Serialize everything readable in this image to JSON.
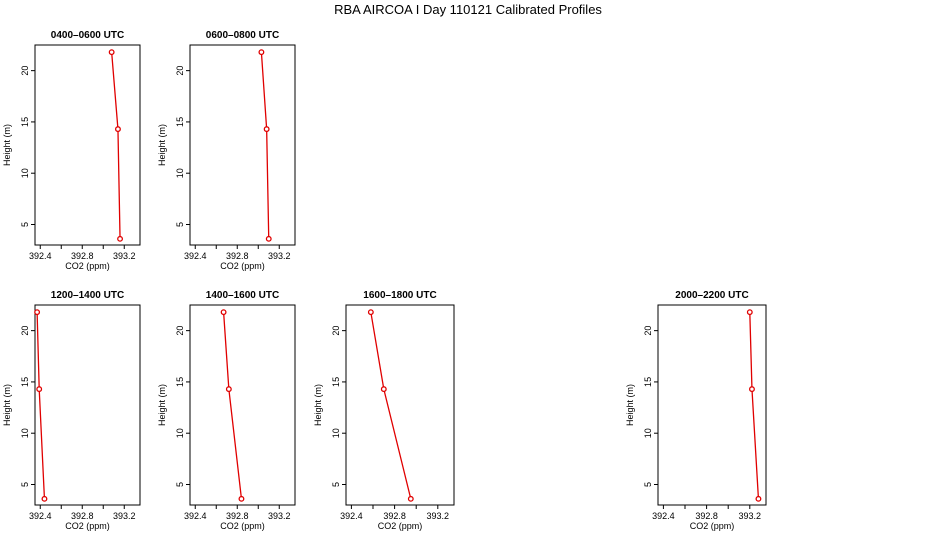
{
  "title": "RBA AIRCOA I  Day 110121  Calibrated Profiles",
  "colors": {
    "series": "#e00000",
    "axes": "#000000",
    "background": "#ffffff"
  },
  "chart_data": [
    {
      "type": "line",
      "title": "0400–0600 UTC",
      "xlabel": "CO2 (ppm)",
      "ylabel": "Height (m)",
      "xlim": [
        392.35,
        393.35
      ],
      "ylim": [
        3,
        22.5
      ],
      "xticks": [
        "392.4",
        "392.8",
        "393.2"
      ],
      "yticks": [
        "5",
        "10",
        "15",
        "20"
      ],
      "points": [
        [
          393.08,
          21.8
        ],
        [
          393.14,
          14.3
        ],
        [
          393.16,
          3.6
        ]
      ]
    },
    {
      "type": "line",
      "title": "0600–0800 UTC",
      "xlabel": "CO2 (ppm)",
      "ylabel": "Height (m)",
      "xlim": [
        392.35,
        393.35
      ],
      "ylim": [
        3,
        22.5
      ],
      "xticks": [
        "392.4",
        "392.8",
        "393.2"
      ],
      "yticks": [
        "5",
        "10",
        "15",
        "20"
      ],
      "points": [
        [
          393.03,
          21.8
        ],
        [
          393.08,
          14.3
        ],
        [
          393.1,
          3.6
        ]
      ]
    },
    {
      "type": "line",
      "title": "1200–1400 UTC",
      "xlabel": "CO2 (ppm)",
      "ylabel": "Height (m)",
      "xlim": [
        392.35,
        393.35
      ],
      "ylim": [
        3,
        22.5
      ],
      "xticks": [
        "392.4",
        "392.8",
        "393.2"
      ],
      "yticks": [
        "5",
        "10",
        "15",
        "20"
      ],
      "points": [
        [
          392.37,
          21.8
        ],
        [
          392.39,
          14.3
        ],
        [
          392.44,
          3.6
        ]
      ]
    },
    {
      "type": "line",
      "title": "1400–1600 UTC",
      "xlabel": "CO2 (ppm)",
      "ylabel": "Height (m)",
      "xlim": [
        392.35,
        393.35
      ],
      "ylim": [
        3,
        22.5
      ],
      "xticks": [
        "392.4",
        "392.8",
        "393.2"
      ],
      "yticks": [
        "5",
        "10",
        "15",
        "20"
      ],
      "points": [
        [
          392.67,
          21.8
        ],
        [
          392.72,
          14.3
        ],
        [
          392.84,
          3.6
        ]
      ]
    },
    {
      "type": "line",
      "title": "1600–1800 UTC",
      "xlabel": "CO2 (ppm)",
      "ylabel": "Height (m)",
      "xlim": [
        392.35,
        393.35
      ],
      "ylim": [
        3,
        22.5
      ],
      "xticks": [
        "392.4",
        "392.8",
        "393.2"
      ],
      "yticks": [
        "5",
        "10",
        "15",
        "20"
      ],
      "points": [
        [
          392.58,
          21.8
        ],
        [
          392.7,
          14.3
        ],
        [
          392.95,
          3.6
        ]
      ]
    },
    {
      "type": "line",
      "title": "2000–2200 UTC",
      "xlabel": "CO2 (ppm)",
      "ylabel": "Height (m)",
      "xlim": [
        392.35,
        393.35
      ],
      "ylim": [
        3,
        22.5
      ],
      "xticks": [
        "392.4",
        "392.8",
        "393.2"
      ],
      "yticks": [
        "5",
        "10",
        "15",
        "20"
      ],
      "points": [
        [
          393.2,
          21.8
        ],
        [
          393.22,
          14.3
        ],
        [
          393.28,
          3.6
        ]
      ]
    }
  ]
}
